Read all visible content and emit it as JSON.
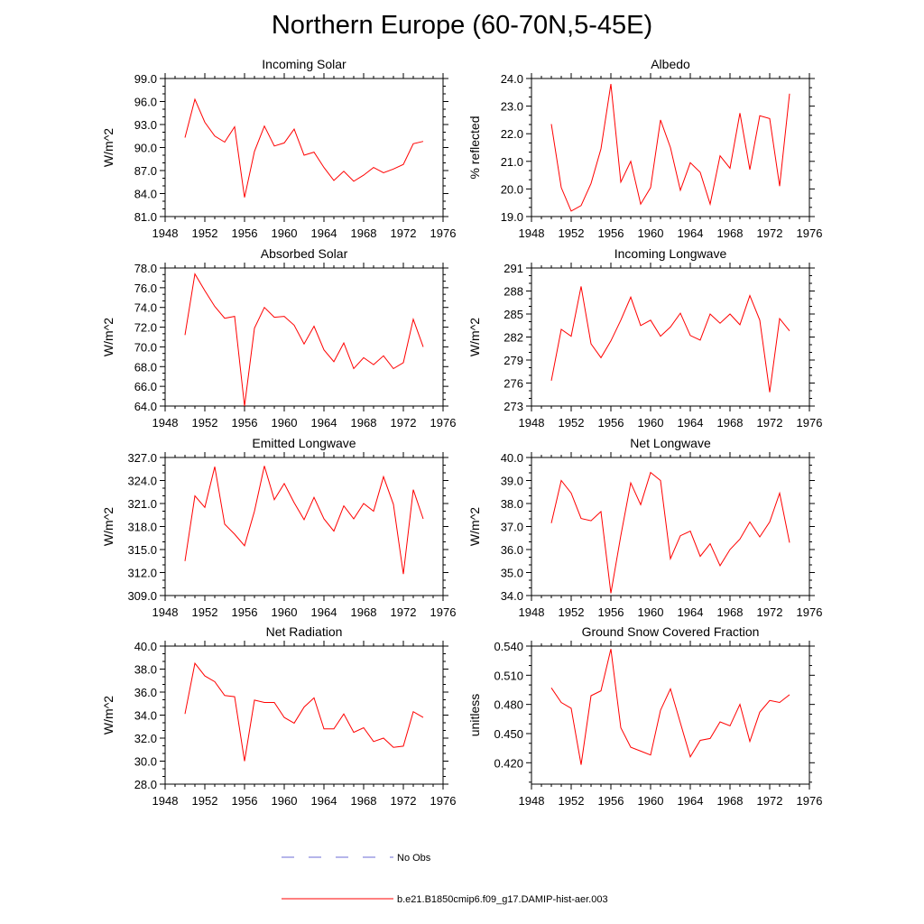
{
  "figure_title": "Northern Europe (60-70N,5-45E)",
  "legend": [
    {
      "label": "No Obs",
      "color": "#6b6bd6",
      "dash": true
    },
    {
      "label": "b.e21.B1850cmip6.f09_g17.DAMIP-hist-aer.003",
      "color": "#ff0000",
      "dash": false
    }
  ],
  "chart_data": [
    {
      "type": "line",
      "title": "Incoming Solar",
      "ylabel": "W/m^2",
      "xlim": [
        1948,
        1976
      ],
      "ylim": [
        81.0,
        99.0
      ],
      "x_ticks": [
        1948,
        1952,
        1956,
        1960,
        1964,
        1968,
        1972,
        1976
      ],
      "y_ticks": [
        "81.0",
        "84.0",
        "87.0",
        "90.0",
        "93.0",
        "96.0",
        "99.0"
      ],
      "x": [
        1950,
        1951,
        1952,
        1953,
        1954,
        1955,
        1956,
        1957,
        1958,
        1959,
        1960,
        1961,
        1962,
        1963,
        1964,
        1965,
        1966,
        1967,
        1968,
        1969,
        1970,
        1971,
        1972,
        1973,
        1974
      ],
      "series": [
        {
          "color": "#ff0000",
          "values": [
            91.3,
            96.3,
            93.3,
            91.5,
            90.7,
            92.7,
            83.5,
            89.5,
            92.8,
            90.2,
            90.6,
            92.4,
            89.0,
            89.4,
            87.4,
            85.7,
            86.9,
            85.6,
            86.4,
            87.4,
            86.7,
            87.2,
            87.8,
            90.5,
            90.8
          ]
        }
      ]
    },
    {
      "type": "line",
      "title": "Albedo",
      "ylabel": "% reflected",
      "xlim": [
        1948,
        1976
      ],
      "ylim": [
        19.0,
        24.0
      ],
      "x_ticks": [
        1948,
        1952,
        1956,
        1960,
        1964,
        1968,
        1972,
        1976
      ],
      "y_ticks": [
        "19.0",
        "20.0",
        "21.0",
        "22.0",
        "23.0",
        "24.0"
      ],
      "x": [
        1950,
        1951,
        1952,
        1953,
        1954,
        1955,
        1956,
        1957,
        1958,
        1959,
        1960,
        1961,
        1962,
        1963,
        1964,
        1965,
        1966,
        1967,
        1968,
        1969,
        1970,
        1971,
        1972,
        1973,
        1974
      ],
      "series": [
        {
          "color": "#ff0000",
          "values": [
            22.35,
            20.05,
            19.2,
            19.4,
            20.2,
            21.45,
            23.8,
            20.25,
            21.0,
            19.45,
            20.05,
            22.5,
            21.5,
            19.95,
            20.95,
            20.6,
            19.45,
            21.2,
            20.75,
            22.75,
            20.7,
            22.65,
            22.55,
            20.1,
            23.45
          ]
        }
      ]
    },
    {
      "type": "line",
      "title": "Absorbed Solar",
      "ylabel": "W/m^2",
      "xlim": [
        1948,
        1976
      ],
      "ylim": [
        64.0,
        78.0
      ],
      "x_ticks": [
        1948,
        1952,
        1956,
        1960,
        1964,
        1968,
        1972,
        1976
      ],
      "y_ticks": [
        "64.0",
        "66.0",
        "68.0",
        "70.0",
        "72.0",
        "74.0",
        "76.0",
        "78.0"
      ],
      "x": [
        1950,
        1951,
        1952,
        1953,
        1954,
        1955,
        1956,
        1957,
        1958,
        1959,
        1960,
        1961,
        1962,
        1963,
        1964,
        1965,
        1966,
        1967,
        1968,
        1969,
        1970,
        1971,
        1972,
        1973,
        1974
      ],
      "series": [
        {
          "color": "#ff0000",
          "values": [
            71.2,
            77.4,
            75.7,
            74.1,
            72.9,
            73.1,
            64.0,
            71.9,
            74.0,
            73.0,
            73.1,
            72.2,
            70.3,
            72.1,
            69.7,
            68.5,
            70.4,
            67.8,
            68.9,
            68.2,
            69.1,
            67.8,
            68.4,
            72.8,
            70.0
          ]
        }
      ]
    },
    {
      "type": "line",
      "title": "Incoming Longwave",
      "ylabel": "W/m^2",
      "xlim": [
        1948,
        1976
      ],
      "ylim": [
        273,
        291
      ],
      "x_ticks": [
        1948,
        1952,
        1956,
        1960,
        1964,
        1968,
        1972,
        1976
      ],
      "y_ticks": [
        "273",
        "276",
        "279",
        "282",
        "285",
        "288",
        "291"
      ],
      "x": [
        1950,
        1951,
        1952,
        1953,
        1954,
        1955,
        1956,
        1957,
        1958,
        1959,
        1960,
        1961,
        1962,
        1963,
        1964,
        1965,
        1966,
        1967,
        1968,
        1969,
        1970,
        1971,
        1972,
        1973,
        1974
      ],
      "series": [
        {
          "color": "#ff0000",
          "values": [
            276.3,
            283.0,
            282.1,
            288.6,
            281.1,
            279.3,
            281.5,
            284.2,
            287.2,
            283.5,
            284.2,
            282.1,
            283.3,
            285.1,
            282.2,
            281.6,
            285.0,
            283.8,
            285.0,
            283.6,
            287.4,
            284.2,
            274.8,
            284.4,
            282.8
          ]
        }
      ]
    },
    {
      "type": "line",
      "title": "Emitted Longwave",
      "ylabel": "W/m^2",
      "xlim": [
        1948,
        1976
      ],
      "ylim": [
        309.0,
        327.0
      ],
      "x_ticks": [
        1948,
        1952,
        1956,
        1960,
        1964,
        1968,
        1972,
        1976
      ],
      "y_ticks": [
        "309.0",
        "312.0",
        "315.0",
        "318.0",
        "321.0",
        "324.0",
        "327.0"
      ],
      "x": [
        1950,
        1951,
        1952,
        1953,
        1954,
        1955,
        1956,
        1957,
        1958,
        1959,
        1960,
        1961,
        1962,
        1963,
        1964,
        1965,
        1966,
        1967,
        1968,
        1969,
        1970,
        1971,
        1972,
        1973,
        1974
      ],
      "series": [
        {
          "color": "#ff0000",
          "values": [
            313.5,
            322.0,
            320.5,
            325.8,
            318.3,
            317.0,
            315.5,
            320.0,
            325.9,
            321.5,
            323.6,
            321.1,
            318.9,
            321.8,
            319.0,
            317.4,
            320.7,
            319.0,
            321.0,
            320.0,
            324.5,
            320.9,
            311.8,
            322.8,
            319.0
          ]
        }
      ]
    },
    {
      "type": "line",
      "title": "Net Longwave",
      "ylabel": "W/m^2",
      "xlim": [
        1948,
        1976
      ],
      "ylim": [
        34.0,
        40.0
      ],
      "x_ticks": [
        1948,
        1952,
        1956,
        1960,
        1964,
        1968,
        1972,
        1976
      ],
      "y_ticks": [
        "34.0",
        "35.0",
        "36.0",
        "37.0",
        "38.0",
        "39.0",
        "40.0"
      ],
      "x": [
        1950,
        1951,
        1952,
        1953,
        1954,
        1955,
        1956,
        1957,
        1958,
        1959,
        1960,
        1961,
        1962,
        1963,
        1964,
        1965,
        1966,
        1967,
        1968,
        1969,
        1970,
        1971,
        1972,
        1973,
        1974
      ],
      "series": [
        {
          "color": "#ff0000",
          "values": [
            37.15,
            39.0,
            38.45,
            37.35,
            37.25,
            37.65,
            34.1,
            36.6,
            38.9,
            37.95,
            39.35,
            39.0,
            35.6,
            36.6,
            36.8,
            35.7,
            36.25,
            35.3,
            36.0,
            36.45,
            37.2,
            36.55,
            37.2,
            38.45,
            36.3
          ]
        }
      ]
    },
    {
      "type": "line",
      "title": "Net Radiation",
      "ylabel": "W/m^2",
      "xlim": [
        1948,
        1976
      ],
      "ylim": [
        28.0,
        40.0
      ],
      "x_ticks": [
        1948,
        1952,
        1956,
        1960,
        1964,
        1968,
        1972,
        1976
      ],
      "y_ticks": [
        "28.0",
        "30.0",
        "32.0",
        "34.0",
        "36.0",
        "38.0",
        "40.0"
      ],
      "x": [
        1950,
        1951,
        1952,
        1953,
        1954,
        1955,
        1956,
        1957,
        1958,
        1959,
        1960,
        1961,
        1962,
        1963,
        1964,
        1965,
        1966,
        1967,
        1968,
        1969,
        1970,
        1971,
        1972,
        1973,
        1974
      ],
      "series": [
        {
          "color": "#ff0000",
          "values": [
            34.1,
            38.5,
            37.4,
            36.9,
            35.7,
            35.6,
            30.0,
            35.3,
            35.1,
            35.1,
            33.8,
            33.3,
            34.7,
            35.5,
            32.8,
            32.8,
            34.1,
            32.5,
            32.9,
            31.7,
            32.0,
            31.2,
            31.3,
            34.3,
            33.8
          ]
        }
      ]
    },
    {
      "type": "line",
      "title": "Ground Snow Covered Fraction",
      "ylabel": "unitless",
      "xlim": [
        1948,
        1976
      ],
      "ylim": [
        0.398,
        0.54
      ],
      "x_ticks": [
        1948,
        1952,
        1956,
        1960,
        1964,
        1968,
        1972,
        1976
      ],
      "y_ticks": [
        "0.420",
        "0.450",
        "0.480",
        "0.510",
        "0.540"
      ],
      "x": [
        1950,
        1951,
        1952,
        1953,
        1954,
        1955,
        1956,
        1957,
        1958,
        1959,
        1960,
        1961,
        1962,
        1963,
        1964,
        1965,
        1966,
        1967,
        1968,
        1969,
        1970,
        1971,
        1972,
        1973,
        1974
      ],
      "series": [
        {
          "color": "#ff0000",
          "values": [
            0.497,
            0.482,
            0.476,
            0.418,
            0.489,
            0.494,
            0.537,
            0.456,
            0.436,
            0.432,
            0.428,
            0.474,
            0.496,
            0.461,
            0.426,
            0.443,
            0.445,
            0.462,
            0.458,
            0.48,
            0.442,
            0.472,
            0.484,
            0.482,
            0.49
          ]
        }
      ]
    }
  ]
}
